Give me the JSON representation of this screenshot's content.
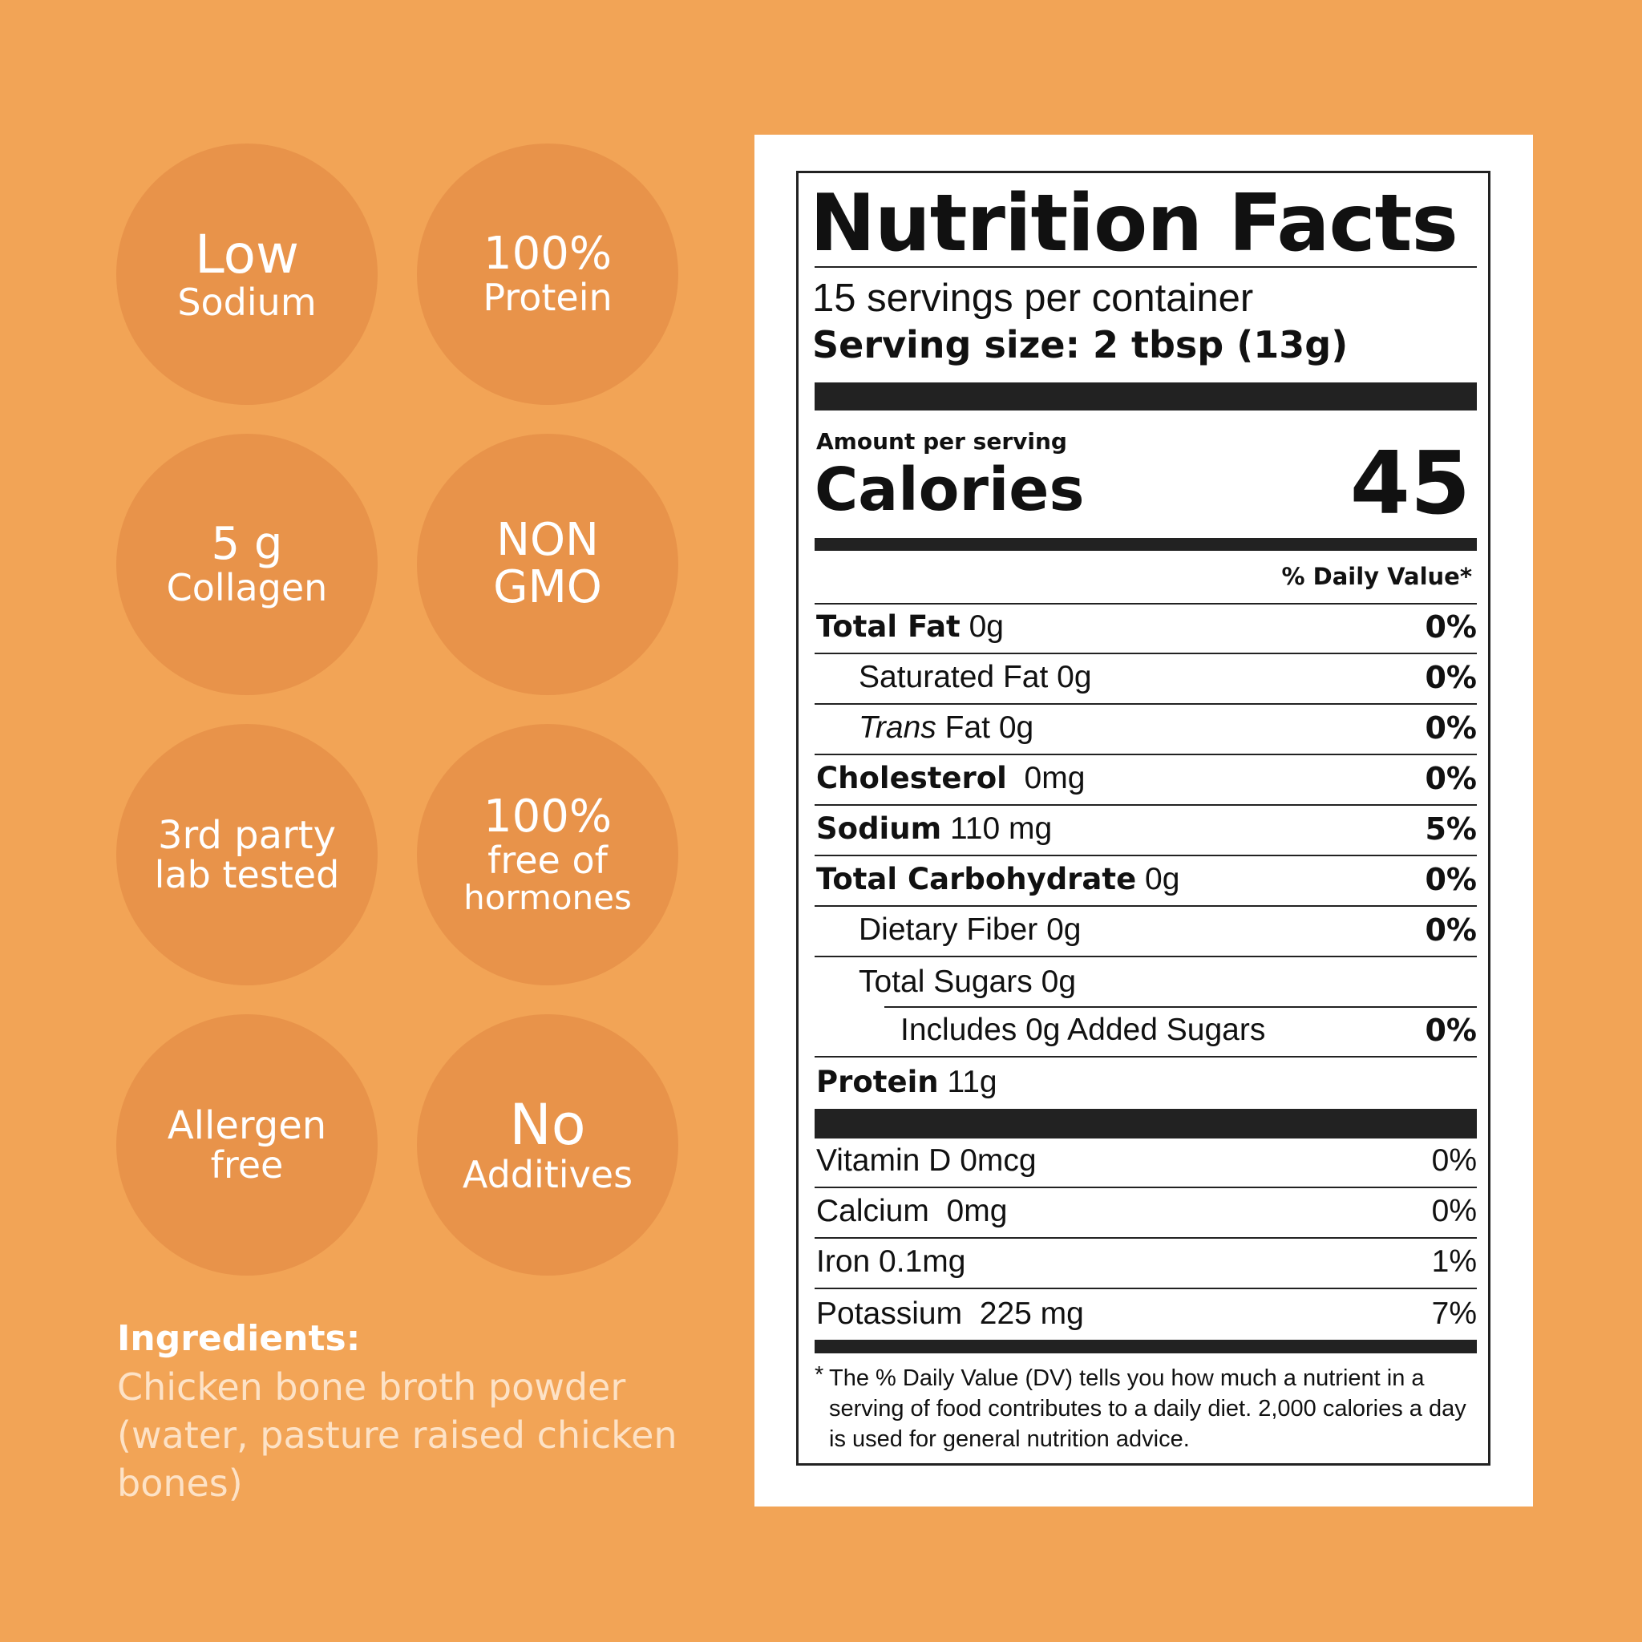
{
  "badges": [
    {
      "line1": "Low",
      "line2": "Sodium"
    },
    {
      "line1": "100%",
      "line2": "Protein"
    },
    {
      "line1": "5 g",
      "line2": "Collagen"
    },
    {
      "line1": "NON",
      "line2": "GMO"
    },
    {
      "line1": "3rd party",
      "line2": "lab tested"
    },
    {
      "line1": "100%",
      "line2": "free of",
      "line3": "hormones"
    },
    {
      "line1": "Allergen",
      "line2": "free"
    },
    {
      "line1": "No",
      "line2": "Additives"
    }
  ],
  "ingredients": {
    "title": "Ingredients:",
    "text": "Chicken bone broth powder (water, pasture raised chicken bones)"
  },
  "nutrition": {
    "title": "Nutrition Facts",
    "servings_per_container": "15 servings per container",
    "serving_size": "Serving size: 2 tbsp (13g)",
    "amount_per_serving": "Amount per serving",
    "calories_label": "Calories",
    "calories_value": "45",
    "daily_value_header": "% Daily Value*",
    "rows": [
      {
        "name": "Total Fat",
        "amount": "0g",
        "dv": "0%"
      },
      {
        "name": "Saturated Fat",
        "amount": "0g",
        "dv": "0%"
      },
      {
        "name_italic": "Trans",
        "name": "Fat",
        "amount": "0g",
        "dv": "0%"
      },
      {
        "name": "Cholesterol",
        "amount": "0mg",
        "dv": "0%"
      },
      {
        "name": "Sodium",
        "amount": "110 mg",
        "dv": "5%"
      },
      {
        "name": "Total Carbohydrate",
        "amount": "0g",
        "dv": "0%"
      },
      {
        "name": "Dietary Fiber",
        "amount": "0g",
        "dv": "0%"
      },
      {
        "name": "Total Sugars",
        "amount": "0g",
        "dv": ""
      },
      {
        "name": "Includes 0g Added Sugars",
        "amount": "",
        "dv": "0%"
      },
      {
        "name": "Protein",
        "amount": "11g",
        "dv": ""
      }
    ],
    "vitamins": [
      {
        "name": "Vitamin D",
        "amount": "0mcg",
        "dv": "0%"
      },
      {
        "name": "Calcium",
        "amount": "0mg",
        "dv": "0%"
      },
      {
        "name": "Iron",
        "amount": "0.1mg",
        "dv": "1%"
      },
      {
        "name": "Potassium",
        "amount": "225 mg",
        "dv": "7%"
      }
    ],
    "footnote_star": "*",
    "footnote": "The % Daily Value (DV) tells you how much a nutrient in a serving of food contributes to a daily diet. 2,000 calories a day is used for general nutrition advice."
  }
}
